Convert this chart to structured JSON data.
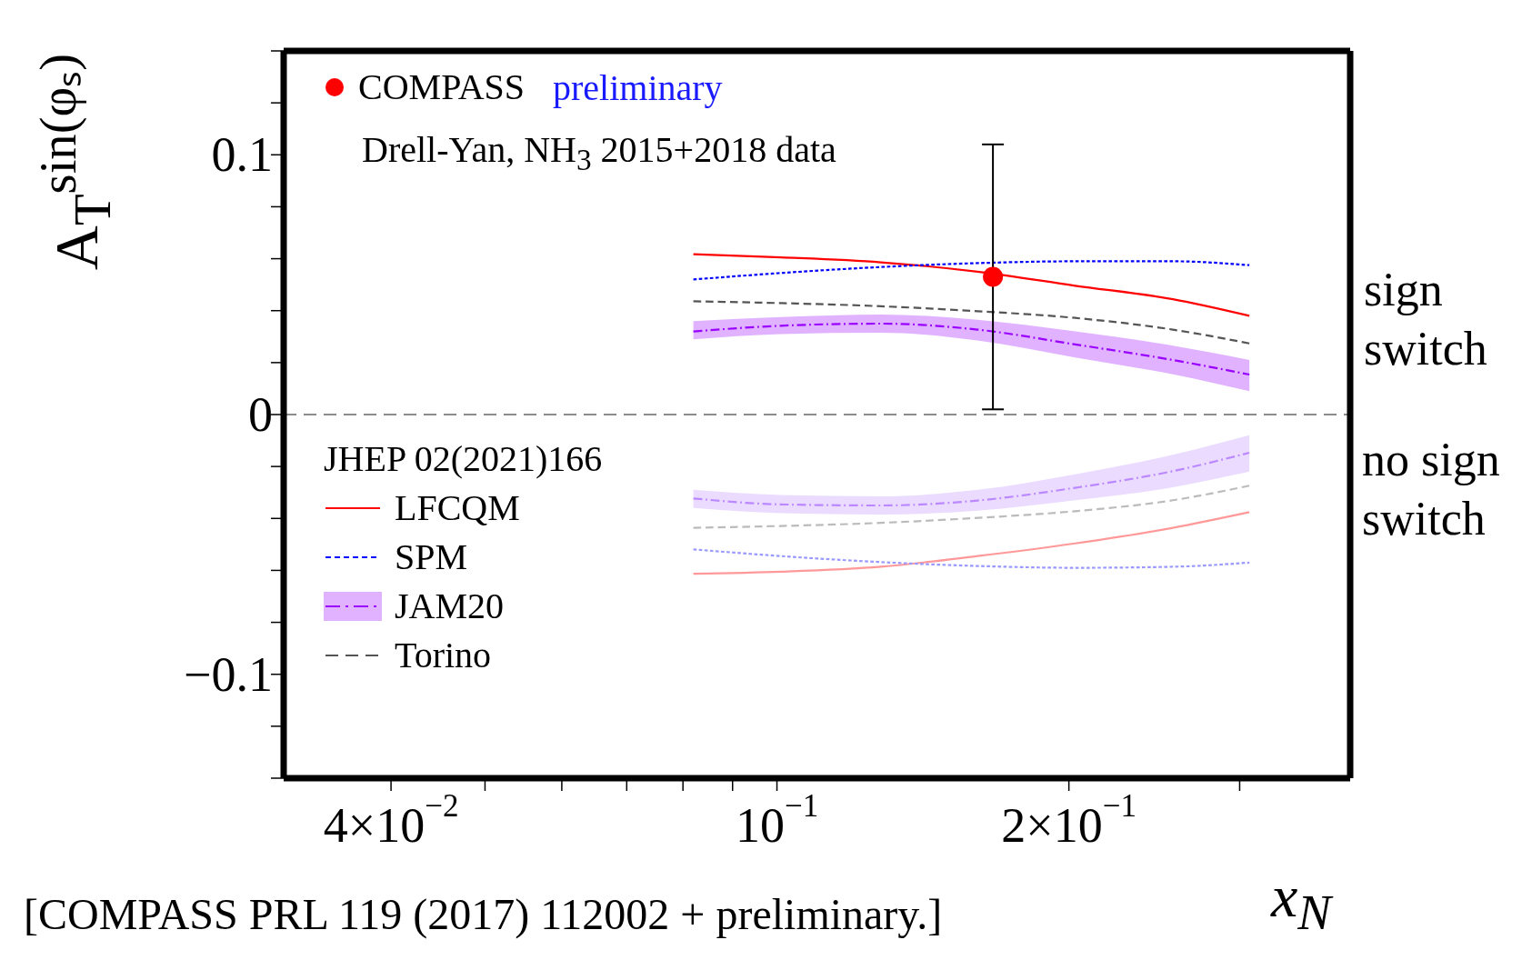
{
  "chart_data": {
    "type": "line",
    "ylabel": "A$_{T}$$^{sin(φₛ)}$",
    "xlabel": "x$_{N}$",
    "log": "x",
    "xlim": [
      0.031,
      0.39
    ],
    "xticks": [
      {
        "value": 0.04,
        "label": "4×10$^{−2}$"
      },
      {
        "value": 0.05,
        "label": null
      },
      {
        "value": 0.06,
        "label": null
      },
      {
        "value": 0.07,
        "label": null
      },
      {
        "value": 0.08,
        "label": null
      },
      {
        "value": 0.09,
        "label": null
      },
      {
        "value": 0.1,
        "label": "10$^{−1}$"
      },
      {
        "value": 0.2,
        "label": "2×10$^{−1}$"
      },
      {
        "value": 0.3,
        "label": null
      }
    ],
    "ylim": [
      -0.14,
      0.14
    ],
    "yticks": [
      {
        "value": -0.14,
        "label": null
      },
      {
        "value": -0.12,
        "label": null
      },
      {
        "value": -0.1,
        "label": "−0.1"
      },
      {
        "value": -0.08,
        "label": null
      },
      {
        "value": -0.06,
        "label": null
      },
      {
        "value": -0.04,
        "label": null
      },
      {
        "value": -0.02,
        "label": null
      },
      0,
      {
        "value": 0.02,
        "label": null
      },
      {
        "value": 0.04,
        "label": null
      },
      {
        "value": 0.06,
        "label": null
      },
      {
        "value": 0.08,
        "label": null
      },
      {
        "value": 0.1,
        "label": "0.1"
      },
      {
        "value": 0.12,
        "label": null
      },
      {
        "value": 0.14,
        "label": null
      }
    ],
    "grid": false,
    "legend": "left",
    "legend_title": "JHEP 02(2021)166",
    "ref_lines": [
      {
        "axis": "y",
        "value": 0,
        "color": "#666666",
        "line_style": "dashed"
      }
    ],
    "annotations": [
      "preliminary",
      "Drell-Yan, NH$_{3}$ 2015+2018 data",
      "sign switch",
      "no sign switch",
      "[COMPASS PRL 119 (2017) 112002 + preliminary.]"
    ],
    "series": [
      {
        "name": "LFCQM",
        "color": "#ff0000",
        "line_style": "solid",
        "x": [
          0.082,
          0.101,
          0.128,
          0.161,
          0.203,
          0.256,
          0.307
        ],
        "values": [
          0.0617,
          0.0605,
          0.0586,
          0.055,
          0.0496,
          0.0444,
          0.038
        ]
      },
      {
        "name": "SPM",
        "color": "#0000ff",
        "line_style": "dotted",
        "x": [
          0.082,
          0.101,
          0.128,
          0.161,
          0.203,
          0.256,
          0.307
        ],
        "values": [
          0.052,
          0.0545,
          0.0568,
          0.0583,
          0.059,
          0.059,
          0.0575
        ]
      },
      {
        "name": "JAM20",
        "color": "#9900ff",
        "line_style": "dashdot",
        "x": [
          0.082,
          0.101,
          0.128,
          0.161,
          0.203,
          0.256,
          0.307
        ],
        "values": [
          0.032,
          0.0342,
          0.035,
          0.0327,
          0.027,
          0.021,
          0.0154
        ],
        "lower": [
          0.029,
          0.031,
          0.0315,
          0.0285,
          0.022,
          0.0155,
          0.009
        ],
        "upper": [
          0.036,
          0.0375,
          0.0385,
          0.0365,
          0.032,
          0.0265,
          0.021
        ]
      },
      {
        "name": "Torino",
        "color": "#555555",
        "line_style": "dashed",
        "x": [
          0.082,
          0.101,
          0.128,
          0.161,
          0.203,
          0.256,
          0.307
        ],
        "values": [
          0.0436,
          0.0429,
          0.0417,
          0.0398,
          0.0372,
          0.0327,
          0.0274
        ]
      },
      {
        "color": "#ff9999",
        "line_style": "solid",
        "x": [
          0.082,
          0.101,
          0.128,
          0.161,
          0.203,
          0.256,
          0.307
        ],
        "values": [
          -0.0613,
          -0.0605,
          -0.0586,
          -0.0545,
          -0.0496,
          -0.0436,
          -0.0376
        ]
      },
      {
        "color": "#9999ff",
        "line_style": "dotted",
        "x": [
          0.082,
          0.101,
          0.128,
          0.161,
          0.203,
          0.256,
          0.307
        ],
        "values": [
          -0.0519,
          -0.0545,
          -0.0568,
          -0.0583,
          -0.059,
          -0.0586,
          -0.057
        ]
      },
      {
        "color": "#bb88ff",
        "line_style": "dashdot",
        "x": [
          0.082,
          0.101,
          0.128,
          0.161,
          0.203,
          0.256,
          0.307
        ],
        "values": [
          -0.0323,
          -0.0346,
          -0.035,
          -0.0331,
          -0.0282,
          -0.0218,
          -0.0147
        ],
        "lower": [
          -0.036,
          -0.038,
          -0.0385,
          -0.037,
          -0.033,
          -0.028,
          -0.022
        ],
        "upper": [
          -0.029,
          -0.031,
          -0.0315,
          -0.029,
          -0.023,
          -0.0155,
          -0.008
        ]
      },
      {
        "color": "#bbbbbb",
        "line_style": "dashed",
        "x": [
          0.082,
          0.101,
          0.128,
          0.161,
          0.203,
          0.256,
          0.307
        ],
        "values": [
          -0.0436,
          -0.0429,
          -0.0417,
          -0.0398,
          -0.0372,
          -0.033,
          -0.0274
        ]
      },
      {
        "type": "scatter",
        "name": "COMPASS",
        "color": "#ff0000",
        "marker": "circle",
        "x": [
          0.167
        ],
        "values": [
          0.053
        ],
        "errors": [
          [
            0.002,
            0.104
          ]
        ]
      }
    ]
  }
}
